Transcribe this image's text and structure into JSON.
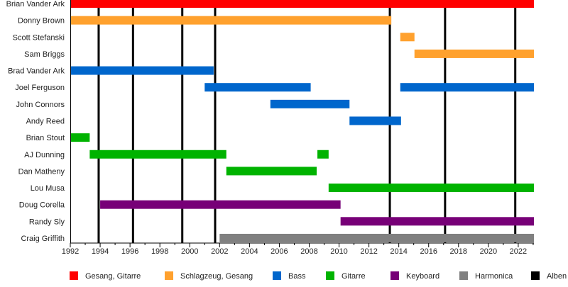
{
  "chart_data": {
    "type": "timeline",
    "title": "",
    "xlim": [
      1992,
      2023.05
    ],
    "x_ticks": [
      1992,
      1994,
      1996,
      1998,
      2000,
      2002,
      2004,
      2006,
      2008,
      2010,
      2012,
      2014,
      2016,
      2018,
      2020,
      2022
    ],
    "x_tick_labels": [
      "1992",
      "1994",
      "1996",
      "1998",
      "2000",
      "2002",
      "2004",
      "2006",
      "2008",
      "2010",
      "2012",
      "2014",
      "2016",
      "2018",
      "2020",
      "2022"
    ],
    "legend_position": "bottom",
    "roles": [
      {
        "name": "Gesang, Gitarre",
        "color": "#ff0000"
      },
      {
        "name": "Schlagzeug, Gesang",
        "color": "#ffa12e"
      },
      {
        "name": "Bass",
        "color": "#0066cc"
      },
      {
        "name": "Gitarre",
        "color": "#00b300"
      },
      {
        "name": "Keyboard",
        "color": "#770077"
      },
      {
        "name": "Harmonica",
        "color": "#808080"
      },
      {
        "name": "Alben",
        "color": "#000000"
      }
    ],
    "members": [
      {
        "name": "Brian Vander Ark",
        "spans": [
          {
            "start": 1992,
            "end": 2023.05,
            "role": 0
          }
        ]
      },
      {
        "name": "Donny Brown",
        "spans": [
          {
            "start": 1992,
            "end": 2013.5,
            "role": 1
          }
        ]
      },
      {
        "name": "Scott Stefanski",
        "spans": [
          {
            "start": 2014.1,
            "end": 2015.05,
            "role": 1
          }
        ]
      },
      {
        "name": "Sam Briggs",
        "spans": [
          {
            "start": 2015.05,
            "end": 2023.05,
            "role": 1
          }
        ]
      },
      {
        "name": "Brad Vander Ark",
        "spans": [
          {
            "start": 1992,
            "end": 2001.6,
            "role": 2
          }
        ]
      },
      {
        "name": "Joel Ferguson",
        "spans": [
          {
            "start": 2001.0,
            "end": 2008.1,
            "role": 2
          },
          {
            "start": 2014.1,
            "end": 2023.05,
            "role": 2
          }
        ]
      },
      {
        "name": "John Connors",
        "spans": [
          {
            "start": 2005.4,
            "end": 2010.7,
            "role": 2
          }
        ]
      },
      {
        "name": "Andy Reed",
        "spans": [
          {
            "start": 2010.7,
            "end": 2014.15,
            "role": 2
          }
        ]
      },
      {
        "name": "Brian Stout",
        "spans": [
          {
            "start": 1992,
            "end": 1993.3,
            "role": 3
          }
        ]
      },
      {
        "name": "AJ Dunning",
        "spans": [
          {
            "start": 1993.3,
            "end": 2002.45,
            "role": 3
          },
          {
            "start": 2008.55,
            "end": 2009.3,
            "role": 3
          }
        ]
      },
      {
        "name": "Dan Matheny",
        "spans": [
          {
            "start": 2002.45,
            "end": 2008.5,
            "role": 3
          }
        ]
      },
      {
        "name": "Lou Musa",
        "spans": [
          {
            "start": 2009.3,
            "end": 2023.05,
            "role": 3
          }
        ]
      },
      {
        "name": "Doug Corella",
        "spans": [
          {
            "start": 1994.0,
            "end": 2010.1,
            "role": 4
          }
        ]
      },
      {
        "name": "Randy Sly",
        "spans": [
          {
            "start": 2010.1,
            "end": 2023.05,
            "role": 4
          }
        ]
      },
      {
        "name": "Craig Griffith",
        "spans": [
          {
            "start": 2002.0,
            "end": 2023.05,
            "role": 5
          }
        ]
      }
    ],
    "albums": [
      1993.9,
      1996.2,
      1999.5,
      2001.7,
      2013.4,
      2017.1,
      2021.8
    ]
  }
}
